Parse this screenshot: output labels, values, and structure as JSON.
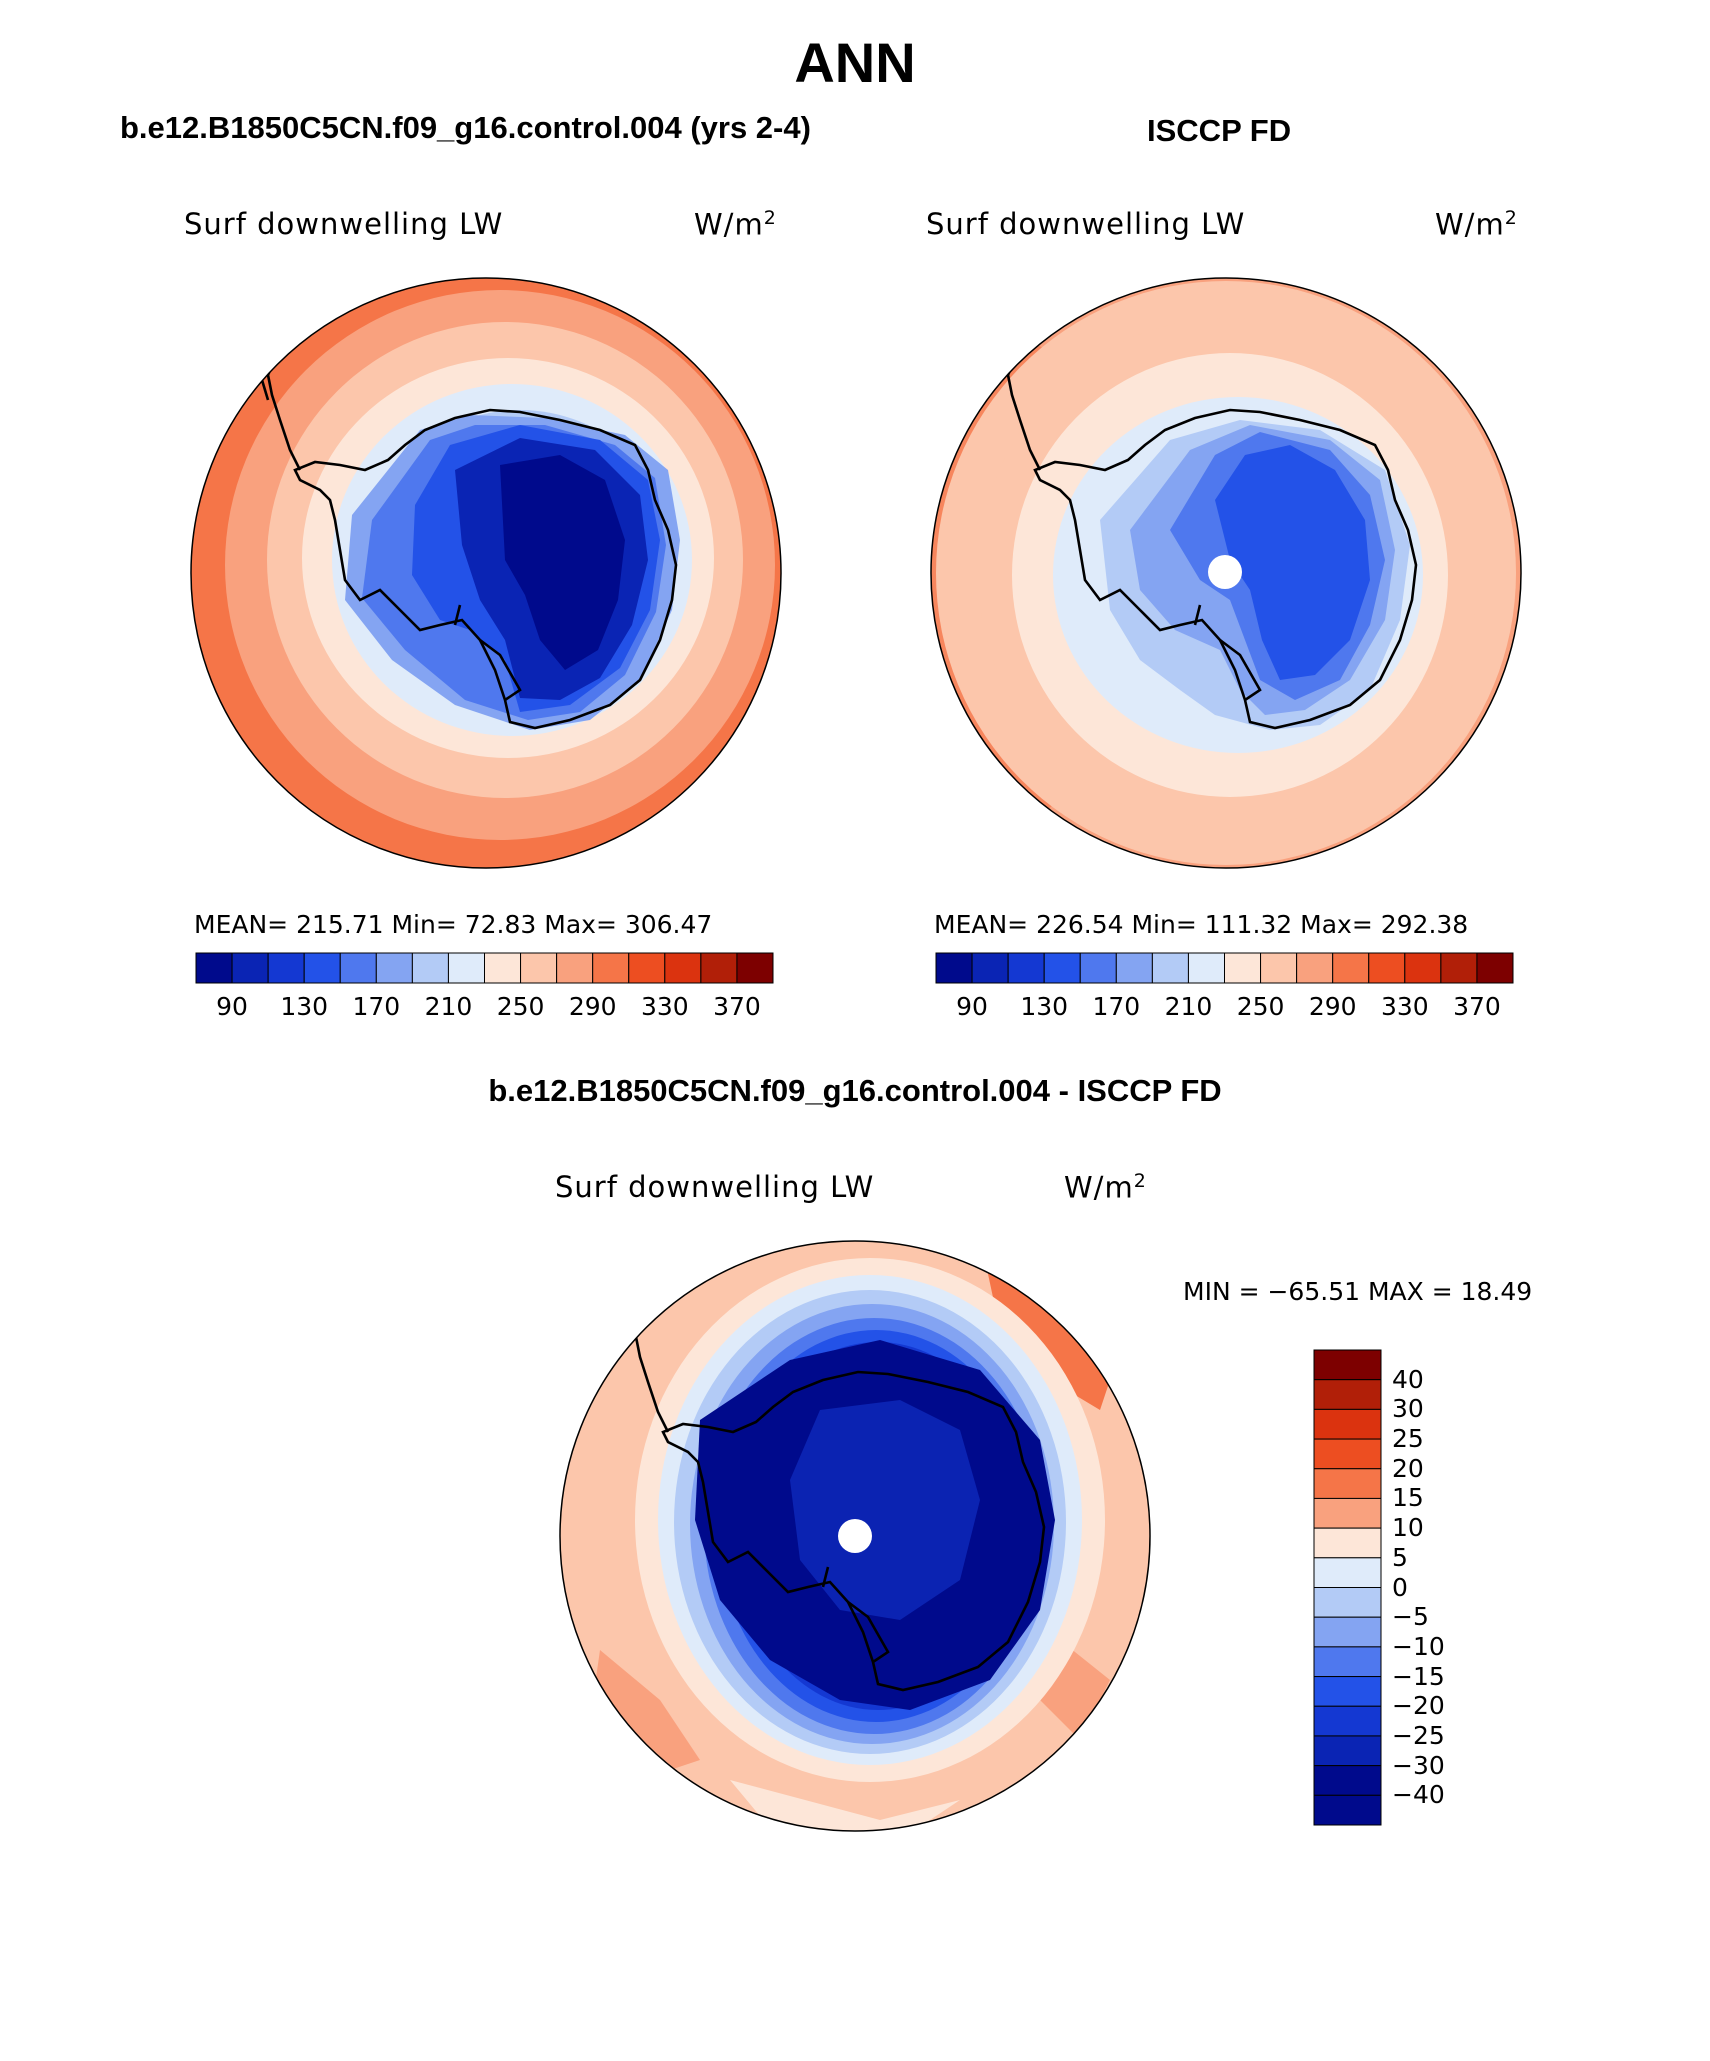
{
  "title": "ANN",
  "panels": [
    {
      "case": "b.e12.B1850C5CN.f09_g16.control.004 (yrs 2-4)",
      "variable": "Surf downwelling LW",
      "units": "W/m",
      "units_sup": "2",
      "stats": "MEAN= 215.71   Min=   72.83   Max= 306.47",
      "colorbar_ticks": [
        "90",
        "130",
        "170",
        "210",
        "250",
        "290",
        "330",
        "370"
      ],
      "has_pole_hole": false
    },
    {
      "case": "ISCCP FD",
      "variable": "Surf downwelling LW",
      "units": "W/m",
      "units_sup": "2",
      "stats": "MEAN= 226.54   Min= 111.32   Max= 292.38",
      "colorbar_ticks": [
        "90",
        "130",
        "170",
        "210",
        "250",
        "290",
        "330",
        "370"
      ],
      "has_pole_hole": true
    },
    {
      "case": "b.e12.B1850C5CN.f09_g16.control.004 - ISCCP FD",
      "variable": "Surf downwelling LW",
      "units": "W/m",
      "units_sup": "2",
      "stats": "MIN = −65.51  MAX =   18.49",
      "colorbar_ticks": [
        "40",
        "30",
        "25",
        "20",
        "15",
        "10",
        "5",
        "0",
        "−5",
        "−10",
        "−15",
        "−20",
        "−25",
        "−30",
        "−40"
      ],
      "has_pole_hole": true
    }
  ],
  "colormaps": {
    "absolute": [
      "#000a8c",
      "#0a24b4",
      "#1438d2",
      "#2352e8",
      "#4f78ee",
      "#84a4f2",
      "#b3cbf6",
      "#dfebfa",
      "#fde6d8",
      "#fcc6ab",
      "#f9a17e",
      "#f57548",
      "#ed4e21",
      "#db330f",
      "#b11f08",
      "#7d0000"
    ],
    "difference": [
      "#7d0000",
      "#b11f08",
      "#db330f",
      "#ed4e21",
      "#f57548",
      "#f9a17e",
      "#fde6d8",
      "#dfebfa",
      "#b3cbf6",
      "#84a4f2",
      "#4f78ee",
      "#2352e8",
      "#1438d2",
      "#0a24b4",
      "#000a8c",
      "#000a8c"
    ]
  }
}
